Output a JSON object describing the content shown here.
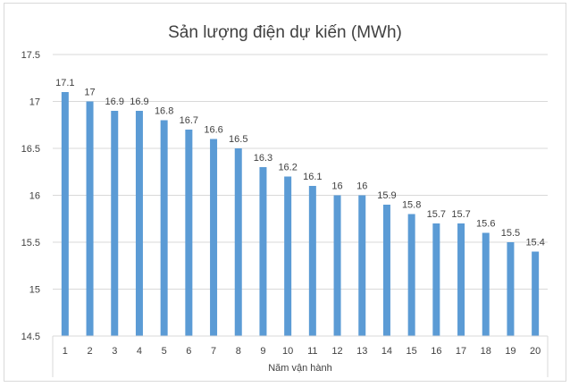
{
  "chart_data": {
    "type": "bar",
    "title": "Sản lượng điện dự kiến (MWh)",
    "xlabel": "Năm vận hành",
    "ylabel": "",
    "categories": [
      "1",
      "2",
      "3",
      "4",
      "5",
      "6",
      "7",
      "8",
      "9",
      "10",
      "11",
      "12",
      "13",
      "14",
      "15",
      "16",
      "17",
      "18",
      "19",
      "20"
    ],
    "values": [
      17.1,
      17,
      16.9,
      16.9,
      16.8,
      16.7,
      16.6,
      16.5,
      16.3,
      16.2,
      16.1,
      16,
      16,
      15.9,
      15.8,
      15.7,
      15.7,
      15.6,
      15.5,
      15.4
    ],
    "ylim": [
      14.5,
      17.5
    ],
    "yticks": [
      "14.5",
      "15",
      "15.5",
      "16",
      "16.5",
      "17",
      "17.5"
    ],
    "grid": true,
    "legend": "none",
    "colors": {
      "bar": "#5b9bd5",
      "grid": "#d9d9d9",
      "text": "#404040"
    }
  }
}
